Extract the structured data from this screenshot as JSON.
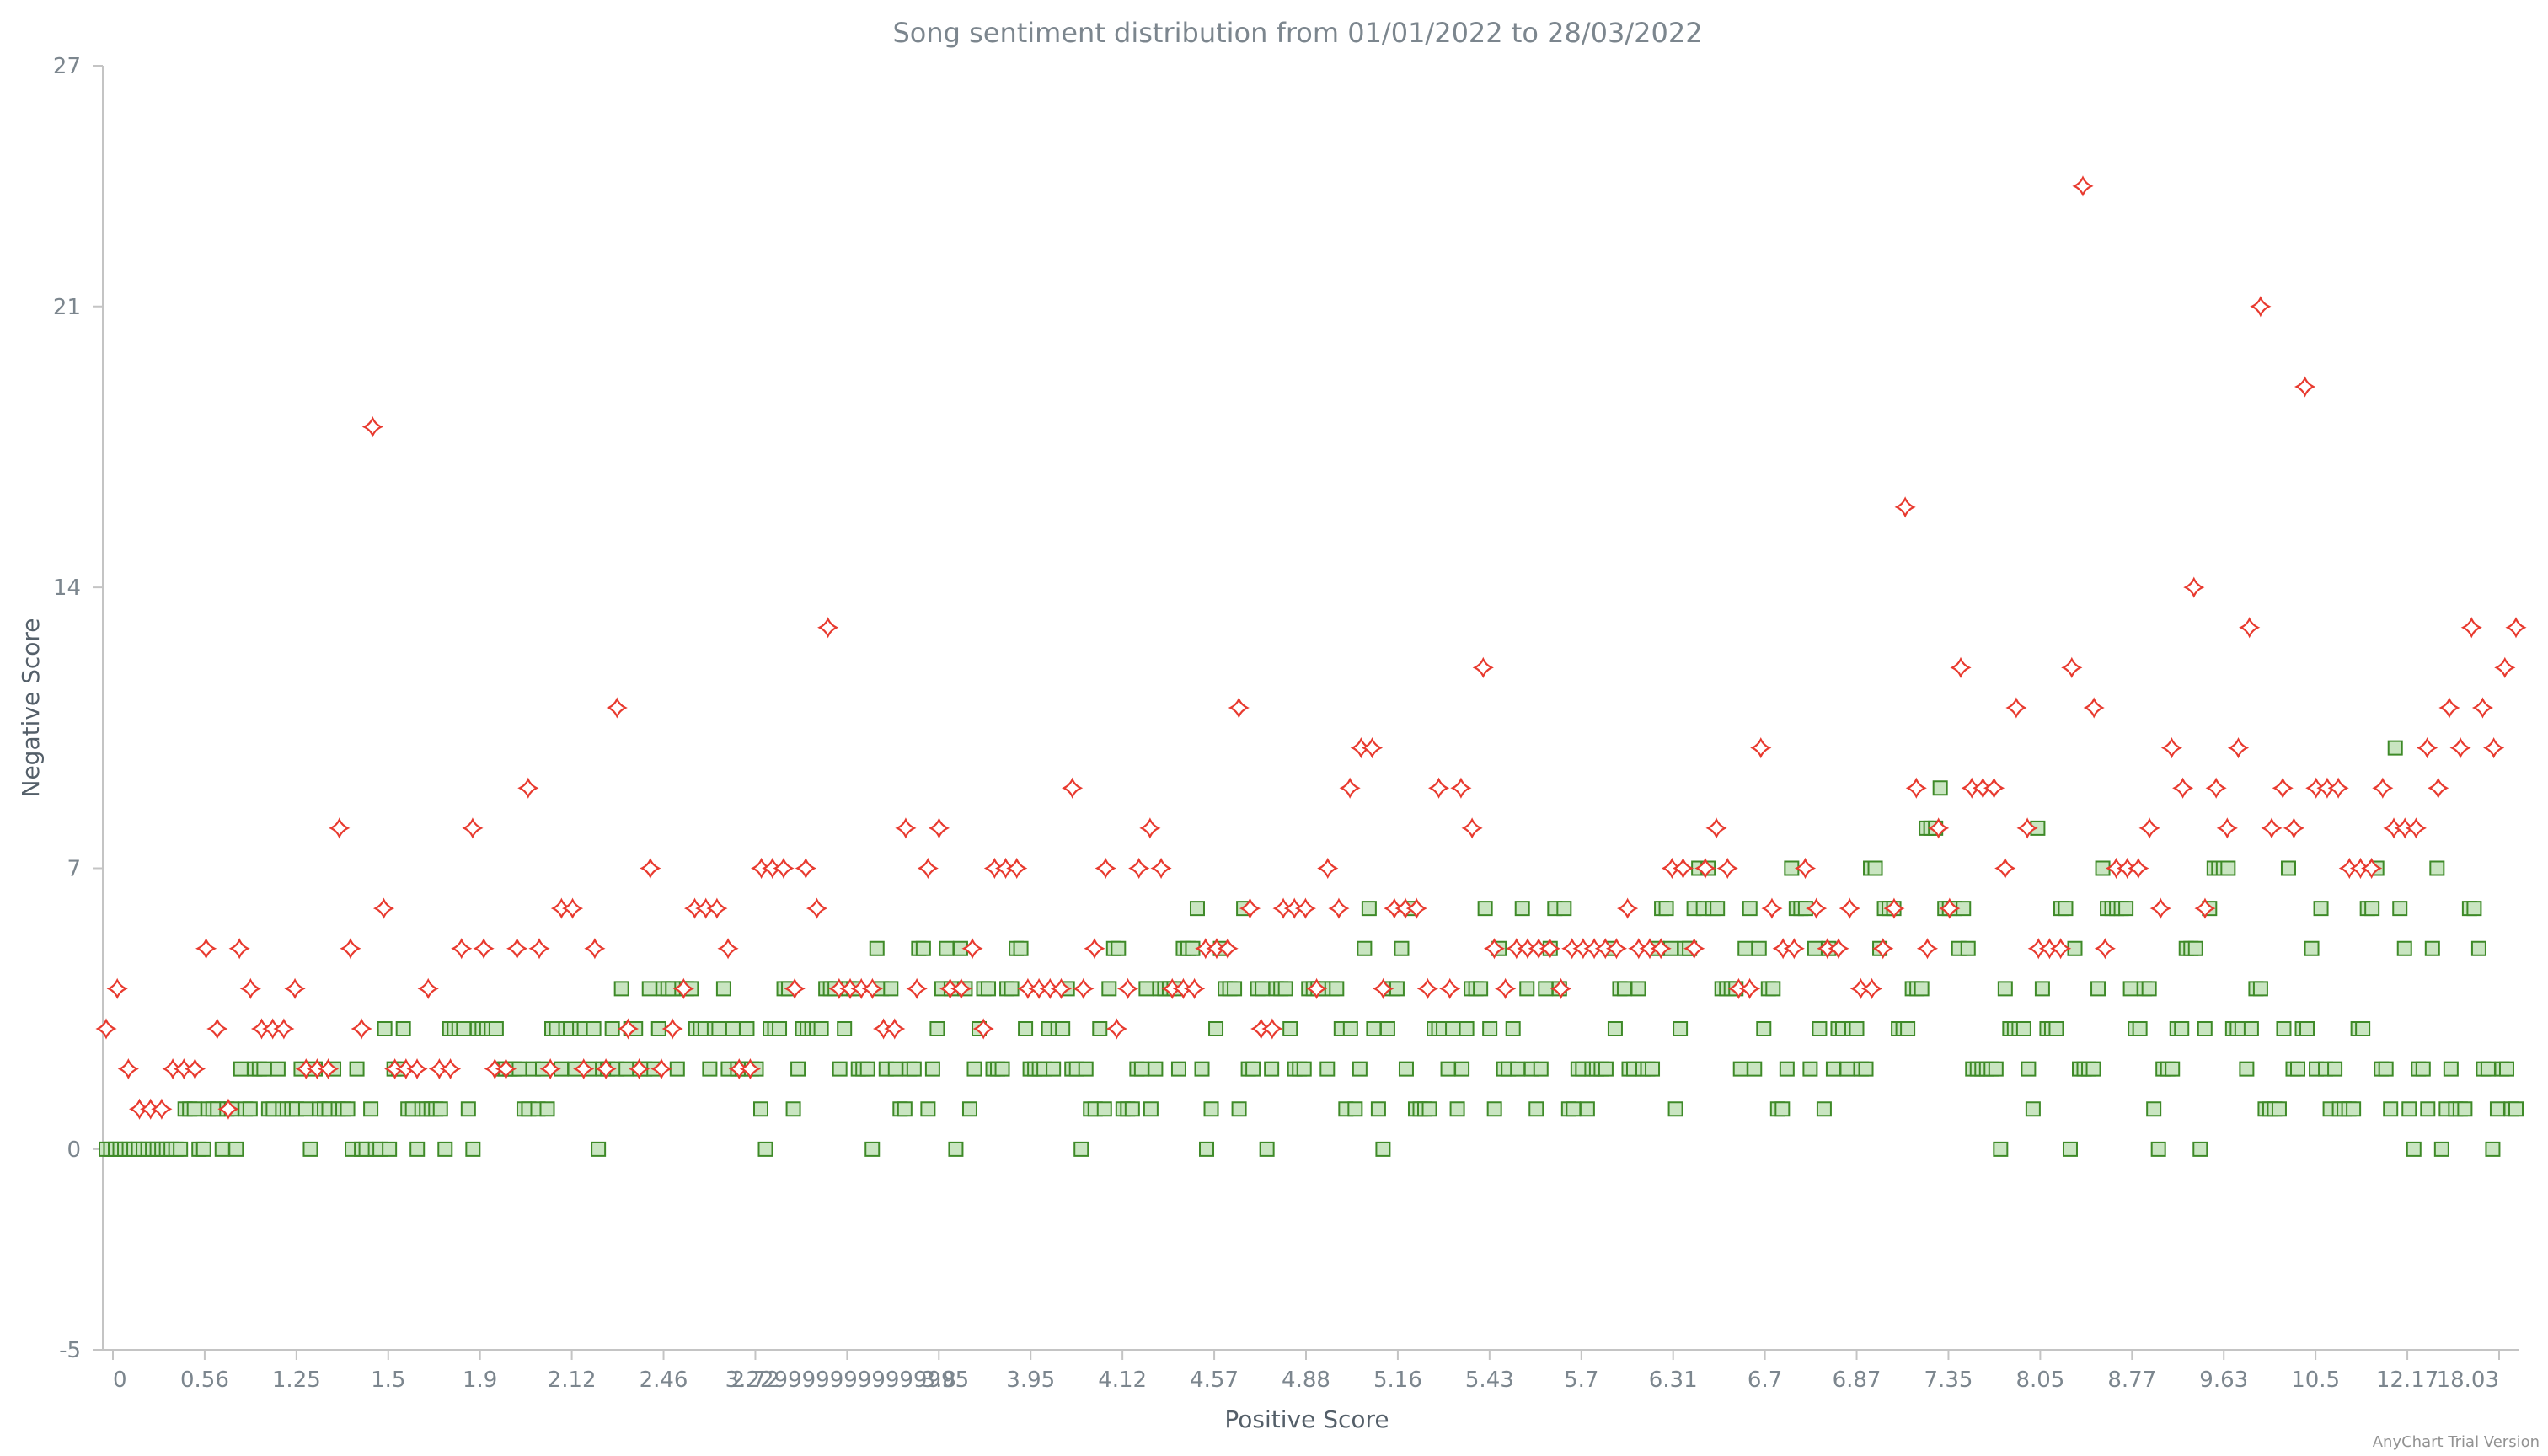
{
  "credits": "AnyChart Trial Version",
  "colors": {
    "positive_fill": "#c9e5c1",
    "positive_stroke": "#3e8a28",
    "negative_fill": "#ffffff",
    "negative_stroke": "#e83a2f",
    "axis": "#c4c4c4",
    "text": "#7c868e"
  },
  "chart_data": {
    "type": "scatter",
    "title": "Song sentiment distribution from 01/01/2022 to 28/03/2022",
    "xlabel": "Positive Score",
    "ylabel": "Negative Score",
    "x_axis_kind": "ordinal",
    "xlim": [
      0,
      18.03
    ],
    "ylim": [
      -5,
      27
    ],
    "y_ticks": [
      -5,
      0,
      7,
      14,
      21,
      27
    ],
    "x_tick_labels": [
      "0",
      "0.56",
      "1.25",
      "1.5",
      "1.9",
      "2.12",
      "2.46",
      "2.72",
      "3.2299999999999995",
      "3.8",
      "3.95",
      "4.12",
      "4.57",
      "4.88",
      "5.16",
      "5.43",
      "5.7",
      "6.31",
      "6.7",
      "6.87",
      "7.35",
      "8.05",
      "8.77",
      "9.63",
      "10.5",
      "12.17",
      "18.03"
    ],
    "grid": false,
    "legend": "none",
    "series": [
      {
        "marker": "square",
        "values": [
          0,
          0,
          0,
          0,
          0,
          0,
          0,
          0,
          0,
          0,
          0,
          0,
          0,
          0,
          0,
          0,
          0,
          1,
          1,
          1,
          0,
          0,
          1,
          1,
          1,
          0,
          1,
          1,
          0,
          2,
          1,
          1,
          2,
          2,
          2,
          1,
          1,
          2,
          1,
          1,
          1,
          1,
          2,
          1,
          0,
          2,
          1,
          1,
          1,
          2,
          1,
          1,
          1,
          0,
          2,
          0,
          0,
          1,
          0,
          0,
          3,
          0,
          2,
          2,
          3,
          1,
          1,
          0,
          1,
          1,
          1,
          1,
          1,
          0,
          3,
          3,
          3,
          3,
          1,
          0,
          3,
          3,
          3,
          3,
          3,
          2,
          2,
          2,
          2,
          2,
          1,
          1,
          2,
          1,
          2,
          1,
          3,
          3,
          2,
          3,
          3,
          2,
          3,
          3,
          2,
          3,
          0,
          2,
          2,
          3,
          2,
          4,
          2,
          3,
          3,
          2,
          2,
          4,
          2,
          3,
          4,
          4,
          4,
          2,
          4,
          4,
          4,
          3,
          3,
          3,
          2,
          3,
          3,
          4,
          2,
          3,
          2,
          2,
          3,
          2,
          2,
          1,
          0,
          3,
          3,
          3,
          4,
          4,
          1,
          2,
          3,
          3,
          3,
          3,
          3,
          4,
          4,
          4,
          2,
          3,
          4,
          4,
          2,
          2,
          2,
          0,
          5,
          4,
          2,
          4,
          2,
          1,
          1,
          2,
          2,
          5,
          5,
          1,
          2,
          3,
          4,
          5,
          4,
          0,
          5,
          4,
          1,
          2,
          3,
          4,
          4,
          2,
          2,
          2,
          4,
          4,
          5,
          5,
          3,
          2,
          2,
          2,
          2,
          3,
          2,
          3,
          3,
          4,
          2,
          2,
          0,
          2,
          1,
          1,
          3,
          1,
          4,
          5,
          5,
          1,
          1,
          1,
          2,
          2,
          4,
          1,
          2,
          4,
          4,
          4,
          4,
          2,
          5,
          5,
          5,
          6,
          2,
          0,
          1,
          3,
          5,
          4,
          4,
          4,
          1,
          6,
          2,
          2,
          4,
          4,
          0,
          2,
          4,
          4,
          4,
          3,
          2,
          2,
          2,
          4,
          4,
          4,
          4,
          2,
          4,
          4,
          3,
          1,
          3,
          1,
          2,
          5,
          6,
          3,
          1,
          0,
          3,
          4,
          4,
          5,
          2,
          6,
          1,
          1,
          1,
          1,
          3,
          3,
          3,
          2,
          3,
          1,
          2,
          3,
          4,
          4,
          4,
          6,
          3,
          1,
          5,
          2,
          2,
          3,
          2,
          6,
          4,
          2,
          1,
          2,
          4,
          5,
          6,
          4,
          6,
          1,
          1,
          2,
          2,
          1,
          2,
          2,
          2,
          2,
          5,
          3,
          4,
          4,
          2,
          2,
          4,
          2,
          2,
          2,
          5,
          6,
          6,
          5,
          1,
          3,
          5,
          5,
          6,
          7,
          6,
          7,
          6,
          6,
          4,
          4,
          4,
          4,
          2,
          5,
          6,
          2,
          5,
          3,
          4,
          4,
          1,
          1,
          2,
          7,
          6,
          6,
          6,
          2,
          5,
          3,
          1,
          5,
          2,
          3,
          3,
          2,
          3,
          3,
          2,
          2,
          7,
          7,
          5,
          6,
          6,
          6,
          3,
          3,
          3,
          4,
          4,
          4,
          8,
          8,
          8,
          9,
          6,
          6,
          6,
          5,
          6,
          5,
          2,
          2,
          2,
          2,
          2,
          2,
          0,
          4,
          3,
          3,
          3,
          3,
          2,
          1,
          8,
          4,
          3,
          3,
          3,
          6,
          6,
          0,
          5,
          2,
          2,
          2,
          2,
          4,
          7,
          6,
          6,
          6,
          6,
          6,
          4,
          3,
          3,
          4,
          4,
          1,
          0,
          2,
          2,
          2,
          3,
          3,
          5,
          5,
          5,
          0,
          3,
          6,
          7,
          7,
          7,
          7,
          3,
          3,
          3,
          2,
          3,
          4,
          4,
          1,
          1,
          1,
          1,
          3,
          7,
          2,
          2,
          3,
          3,
          5,
          2,
          6,
          2,
          1,
          2,
          1,
          1,
          1,
          1,
          3,
          3,
          6,
          6,
          7,
          2,
          2,
          1,
          10,
          6,
          5,
          1,
          0,
          2,
          2,
          1,
          5,
          7,
          0,
          1,
          2,
          1,
          1,
          1,
          6,
          6,
          5,
          2,
          2,
          0,
          1,
          2,
          2,
          1,
          1
        ]
      },
      {
        "marker": "diamond",
        "values": [
          3,
          4,
          2,
          1,
          1,
          1,
          2,
          2,
          2,
          5,
          3,
          1,
          5,
          4,
          3,
          3,
          3,
          4,
          2,
          2,
          2,
          8,
          5,
          3,
          18,
          6,
          2,
          2,
          2,
          4,
          2,
          2,
          5,
          8,
          5,
          2,
          2,
          5,
          9,
          5,
          2,
          6,
          6,
          2,
          5,
          2,
          11,
          3,
          2,
          7,
          2,
          3,
          4,
          6,
          6,
          6,
          5,
          2,
          2,
          7,
          7,
          7,
          4,
          7,
          6,
          13,
          4,
          4,
          4,
          4,
          3,
          3,
          8,
          4,
          7,
          8,
          4,
          4,
          5,
          3,
          7,
          7,
          7,
          4,
          4,
          4,
          4,
          9,
          4,
          5,
          7,
          3,
          4,
          7,
          8,
          7,
          4,
          4,
          4,
          5,
          5,
          5,
          11,
          6,
          3,
          3,
          6,
          6,
          6,
          4,
          7,
          6,
          9,
          10,
          10,
          4,
          6,
          6,
          6,
          4,
          9,
          4,
          9,
          8,
          12,
          5,
          4,
          5,
          5,
          5,
          5,
          4,
          5,
          5,
          5,
          5,
          5,
          6,
          5,
          5,
          5,
          7,
          7,
          5,
          7,
          8,
          7,
          4,
          4,
          10,
          6,
          5,
          5,
          7,
          6,
          5,
          5,
          6,
          4,
          4,
          5,
          6,
          16,
          9,
          5,
          8,
          6,
          12,
          9,
          9,
          9,
          7,
          11,
          8,
          5,
          5,
          5,
          12,
          24,
          11,
          5,
          7,
          7,
          7,
          8,
          6,
          10,
          9,
          14,
          6,
          9,
          8,
          10,
          13,
          21,
          8,
          9,
          8,
          19,
          9,
          9,
          9,
          7,
          7,
          7,
          9,
          8,
          8,
          8,
          10,
          9,
          11,
          10,
          13,
          11,
          10,
          12,
          13
        ]
      }
    ]
  }
}
